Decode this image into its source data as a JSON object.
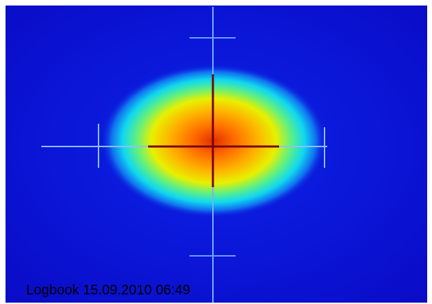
{
  "caption": "Logbook 15.09.2010 06:49"
}
